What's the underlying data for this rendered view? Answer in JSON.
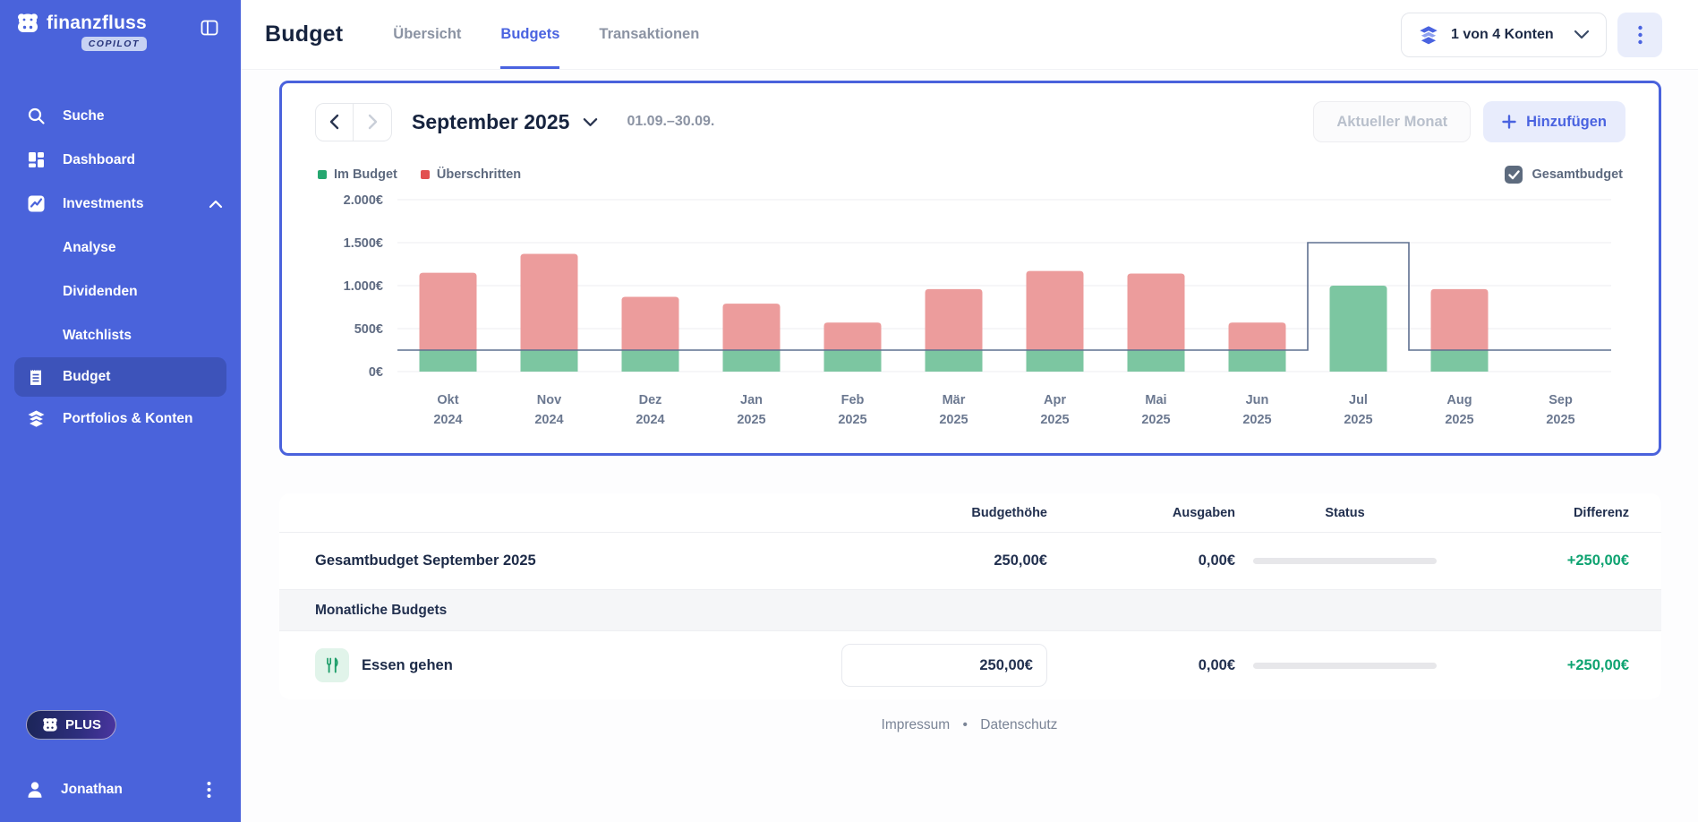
{
  "colors": {
    "sidebar": "#4A63DB",
    "accent": "#4A63E0",
    "bar_green": "#7CC6A1",
    "bar_red": "#EC9C9C",
    "legend_green": "#26A770",
    "legend_red": "#E25050",
    "budget_line": "#5F7090",
    "positive": "#0EA371",
    "grid_line": "#EDEDF1",
    "axis_text": "#6B7890"
  },
  "sidebar": {
    "brand": "finanzfluss",
    "badge": "COPILOT",
    "items": [
      {
        "label": "Suche"
      },
      {
        "label": "Dashboard"
      },
      {
        "label": "Investments"
      },
      {
        "label": "Analyse"
      },
      {
        "label": "Dividenden"
      },
      {
        "label": "Watchlists"
      },
      {
        "label": "Budget"
      },
      {
        "label": "Portfolios & Konten"
      }
    ],
    "plus_label": "PLUS",
    "user_name": "Jonathan"
  },
  "header": {
    "title": "Budget",
    "tabs": [
      {
        "label": "Übersicht"
      },
      {
        "label": "Budgets"
      },
      {
        "label": "Transaktionen"
      }
    ],
    "accounts_selector": "1 von 4 Konten"
  },
  "budget_card": {
    "month_label": "September 2025",
    "date_range": "01.09.–30.09.",
    "current_month_button": "Aktueller Monat",
    "add_button": "Hinzufügen",
    "legend_in_budget": "Im Budget",
    "legend_exceeded": "Überschritten",
    "total_budget_label": "Gesamtbudget"
  },
  "chart_data": {
    "type": "bar",
    "stacked": true,
    "title": "",
    "categories": [
      "Okt 2024",
      "Nov 2024",
      "Dez 2024",
      "Jan 2025",
      "Feb 2025",
      "Mär 2025",
      "Apr 2025",
      "Mai 2025",
      "Jun 2025",
      "Jul 2025",
      "Aug 2025",
      "Sep 2025"
    ],
    "x_labels": [
      [
        "Okt",
        "2024"
      ],
      [
        "Nov",
        "2024"
      ],
      [
        "Dez",
        "2024"
      ],
      [
        "Jan",
        "2025"
      ],
      [
        "Feb",
        "2025"
      ],
      [
        "Mär",
        "2025"
      ],
      [
        "Apr",
        "2025"
      ],
      [
        "Mai",
        "2025"
      ],
      [
        "Jun",
        "2025"
      ],
      [
        "Jul",
        "2025"
      ],
      [
        "Aug",
        "2025"
      ],
      [
        "Sep",
        "2025"
      ]
    ],
    "series": [
      {
        "name": "Im Budget",
        "color": "#7CC6A1",
        "values": [
          250,
          250,
          250,
          250,
          250,
          250,
          250,
          250,
          250,
          1000,
          250,
          0
        ]
      },
      {
        "name": "Überschritten",
        "color": "#EC9C9C",
        "values": [
          900,
          1120,
          620,
          540,
          320,
          710,
          920,
          890,
          320,
          0,
          710,
          0
        ]
      }
    ],
    "budget_line": {
      "name": "Gesamtbudget",
      "color": "#5F7090",
      "values": [
        250,
        250,
        250,
        250,
        250,
        250,
        250,
        250,
        250,
        1500,
        250,
        250
      ]
    },
    "ylim": [
      0,
      2000
    ],
    "yticks": [
      0,
      500,
      1000,
      1500,
      2000
    ],
    "ytick_labels": [
      "0€",
      "500€",
      "1.000€",
      "1.500€",
      "2.000€"
    ],
    "legend_position": "top-left",
    "grid": true
  },
  "table": {
    "headers": {
      "budget": "Budgethöhe",
      "spent": "Ausgaben",
      "status": "Status",
      "diff": "Differenz"
    },
    "total_row": {
      "name": "Gesamtbudget September 2025",
      "budget": "250,00€",
      "spent": "0,00€",
      "diff": "+250,00€"
    },
    "section_label": "Monatliche Budgets",
    "category_row": {
      "name": "Essen gehen",
      "budget": "250,00€",
      "spent": "0,00€",
      "diff": "+250,00€"
    }
  },
  "footer": {
    "link_impressum": "Impressum",
    "separator": "•",
    "link_datenschutz": "Datenschutz"
  }
}
